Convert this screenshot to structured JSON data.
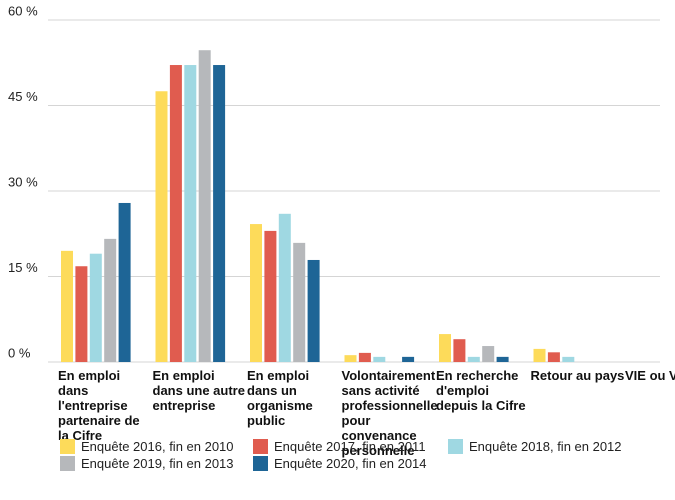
{
  "chart_data": {
    "type": "bar",
    "categories": [
      "En emploi dans l'entreprise partenaire de la Cifre",
      "En emploi dans une autre entreprise",
      "En emploi dans un organisme public",
      "Volontairement sans activité professionnelle pour convenance personnelle",
      "En recherche d'emploi depuis la Cifre",
      "Retour au pays",
      "VIE ou VIA"
    ],
    "series": [
      {
        "name": "Enquête 2016, fin en 2010",
        "color": "#fddb5a",
        "values": [
          19.5,
          47.5,
          24.2,
          1.2,
          4.9,
          2.3,
          0
        ]
      },
      {
        "name": "Enquête 2017, fin en 2011",
        "color": "#e05c4f",
        "values": [
          16.8,
          52.1,
          23,
          1.6,
          4,
          1.7,
          0
        ]
      },
      {
        "name": "Enquête 2018, fin en 2012",
        "color": "#9fd8e2",
        "values": [
          19,
          52.1,
          26,
          0.9,
          0.9,
          0.9,
          0
        ]
      },
      {
        "name": "Enquête 2019, fin en 2013",
        "color": "#b6b8bb",
        "values": [
          21.6,
          54.7,
          20.9,
          0,
          2.8,
          0,
          0
        ]
      },
      {
        "name": "Enquête 2020, fin en 2014",
        "color": "#1e6596",
        "values": [
          27.9,
          52.1,
          17.9,
          0.9,
          0.9,
          0,
          0
        ]
      }
    ],
    "ylim": [
      0,
      60
    ],
    "yticks": [
      {
        "value": 0,
        "label": "0 %"
      },
      {
        "value": 15,
        "label": "15 %"
      },
      {
        "value": 30,
        "label": "30 %"
      },
      {
        "value": 45,
        "label": "45 %"
      },
      {
        "value": 60,
        "label": "60 %"
      }
    ],
    "grid": true
  }
}
